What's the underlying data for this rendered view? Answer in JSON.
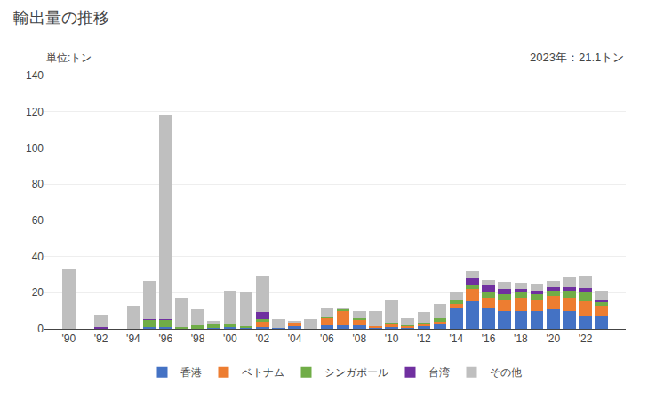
{
  "chart_data": {
    "type": "bar",
    "title": "輸出量の推移",
    "subtitle": "単位:トン",
    "annotations": [
      "2023年：21.1トン"
    ],
    "stacked": true,
    "grid": true,
    "legend": "bottom",
    "x": [
      1990,
      1991,
      1992,
      1993,
      1994,
      1995,
      1996,
      1997,
      1998,
      1999,
      2000,
      2001,
      2002,
      2003,
      2004,
      2005,
      2006,
      2007,
      2008,
      2009,
      2010,
      2011,
      2012,
      2013,
      2014,
      2015,
      2016,
      2017,
      2018,
      2019,
      2020,
      2021,
      2022,
      2023
    ],
    "xlim": [
      1988.5,
      2024.5
    ],
    "xticks": [
      {
        "value": 1990,
        "label": "'90"
      },
      {
        "value": 1992,
        "label": "'92"
      },
      {
        "value": 1994,
        "label": "'94"
      },
      {
        "value": 1996,
        "label": "'96"
      },
      {
        "value": 1998,
        "label": "'98"
      },
      {
        "value": 2000,
        "label": "'00"
      },
      {
        "value": 2002,
        "label": "'02"
      },
      {
        "value": 2004,
        "label": "'04"
      },
      {
        "value": 2006,
        "label": "'06"
      },
      {
        "value": 2008,
        "label": "'08"
      },
      {
        "value": 2010,
        "label": "'10"
      },
      {
        "value": 2012,
        "label": "'12"
      },
      {
        "value": 2014,
        "label": "'14"
      },
      {
        "value": 2016,
        "label": "'16"
      },
      {
        "value": 2018,
        "label": "'18"
      },
      {
        "value": 2020,
        "label": "'20"
      },
      {
        "value": 2022,
        "label": "'22"
      }
    ],
    "ylim": [
      0,
      140
    ],
    "yticks": [
      0,
      20,
      40,
      60,
      80,
      100,
      120,
      140
    ],
    "series": [
      {
        "name": "香港",
        "color": "#4472C4",
        "values": [
          0.0,
          0.0,
          0.0,
          0.0,
          0.0,
          1.0,
          1.0,
          0.0,
          0.0,
          0.5,
          1.0,
          0.5,
          1.0,
          0.5,
          1.5,
          0.0,
          2.0,
          2.0,
          2.0,
          0.5,
          1.0,
          0.5,
          1.5,
          3.0,
          12.0,
          15.0,
          12.0,
          10.0,
          10.0,
          10.0,
          11.0,
          10.0,
          7.0,
          7.0
        ]
      },
      {
        "name": "ベトナム",
        "color": "#ED7D31",
        "values": [
          0.0,
          0.0,
          0.0,
          0.0,
          0.0,
          0.0,
          0.0,
          0.0,
          0.0,
          0.0,
          0.0,
          0.0,
          3.0,
          0.0,
          2.0,
          0.0,
          4.0,
          8.0,
          3.0,
          1.0,
          2.0,
          1.0,
          1.5,
          1.0,
          2.0,
          7.0,
          5.0,
          6.0,
          7.0,
          6.0,
          7.0,
          7.0,
          8.0,
          6.0
        ]
      },
      {
        "name": "シンガポール",
        "color": "#70AD47",
        "values": [
          0.0,
          0.0,
          0.0,
          0.0,
          0.0,
          4.0,
          4.0,
          1.0,
          2.0,
          2.0,
          2.0,
          1.0,
          1.5,
          0.0,
          0.0,
          0.0,
          0.5,
          1.0,
          1.0,
          0.0,
          0.5,
          0.5,
          0.5,
          2.0,
          1.5,
          2.0,
          3.0,
          3.0,
          3.0,
          3.0,
          3.0,
          4.0,
          5.0,
          2.0
        ]
      },
      {
        "name": "台湾",
        "color": "#7030A0",
        "values": [
          0.0,
          0.0,
          1.0,
          0.0,
          0.0,
          0.5,
          0.5,
          0.0,
          0.0,
          0.0,
          0.0,
          0.0,
          4.0,
          0.0,
          0.0,
          0.0,
          0.0,
          0.0,
          0.0,
          0.0,
          0.0,
          0.0,
          0.0,
          0.0,
          0.0,
          4.0,
          4.0,
          3.0,
          2.0,
          2.0,
          2.0,
          2.0,
          2.5,
          0.5
        ]
      },
      {
        "name": "その他",
        "color": "#BFBFBF",
        "values": [
          33.0,
          0.0,
          7.0,
          0.0,
          13.0,
          21.0,
          113.0,
          16.0,
          9.0,
          2.0,
          18.0,
          19.0,
          19.5,
          5.0,
          1.0,
          5.5,
          5.5,
          1.0,
          4.0,
          8.5,
          12.5,
          4.0,
          6.0,
          8.0,
          5.0,
          4.0,
          3.0,
          4.0,
          3.5,
          3.5,
          3.5,
          5.5,
          6.5,
          5.6
        ]
      }
    ]
  }
}
